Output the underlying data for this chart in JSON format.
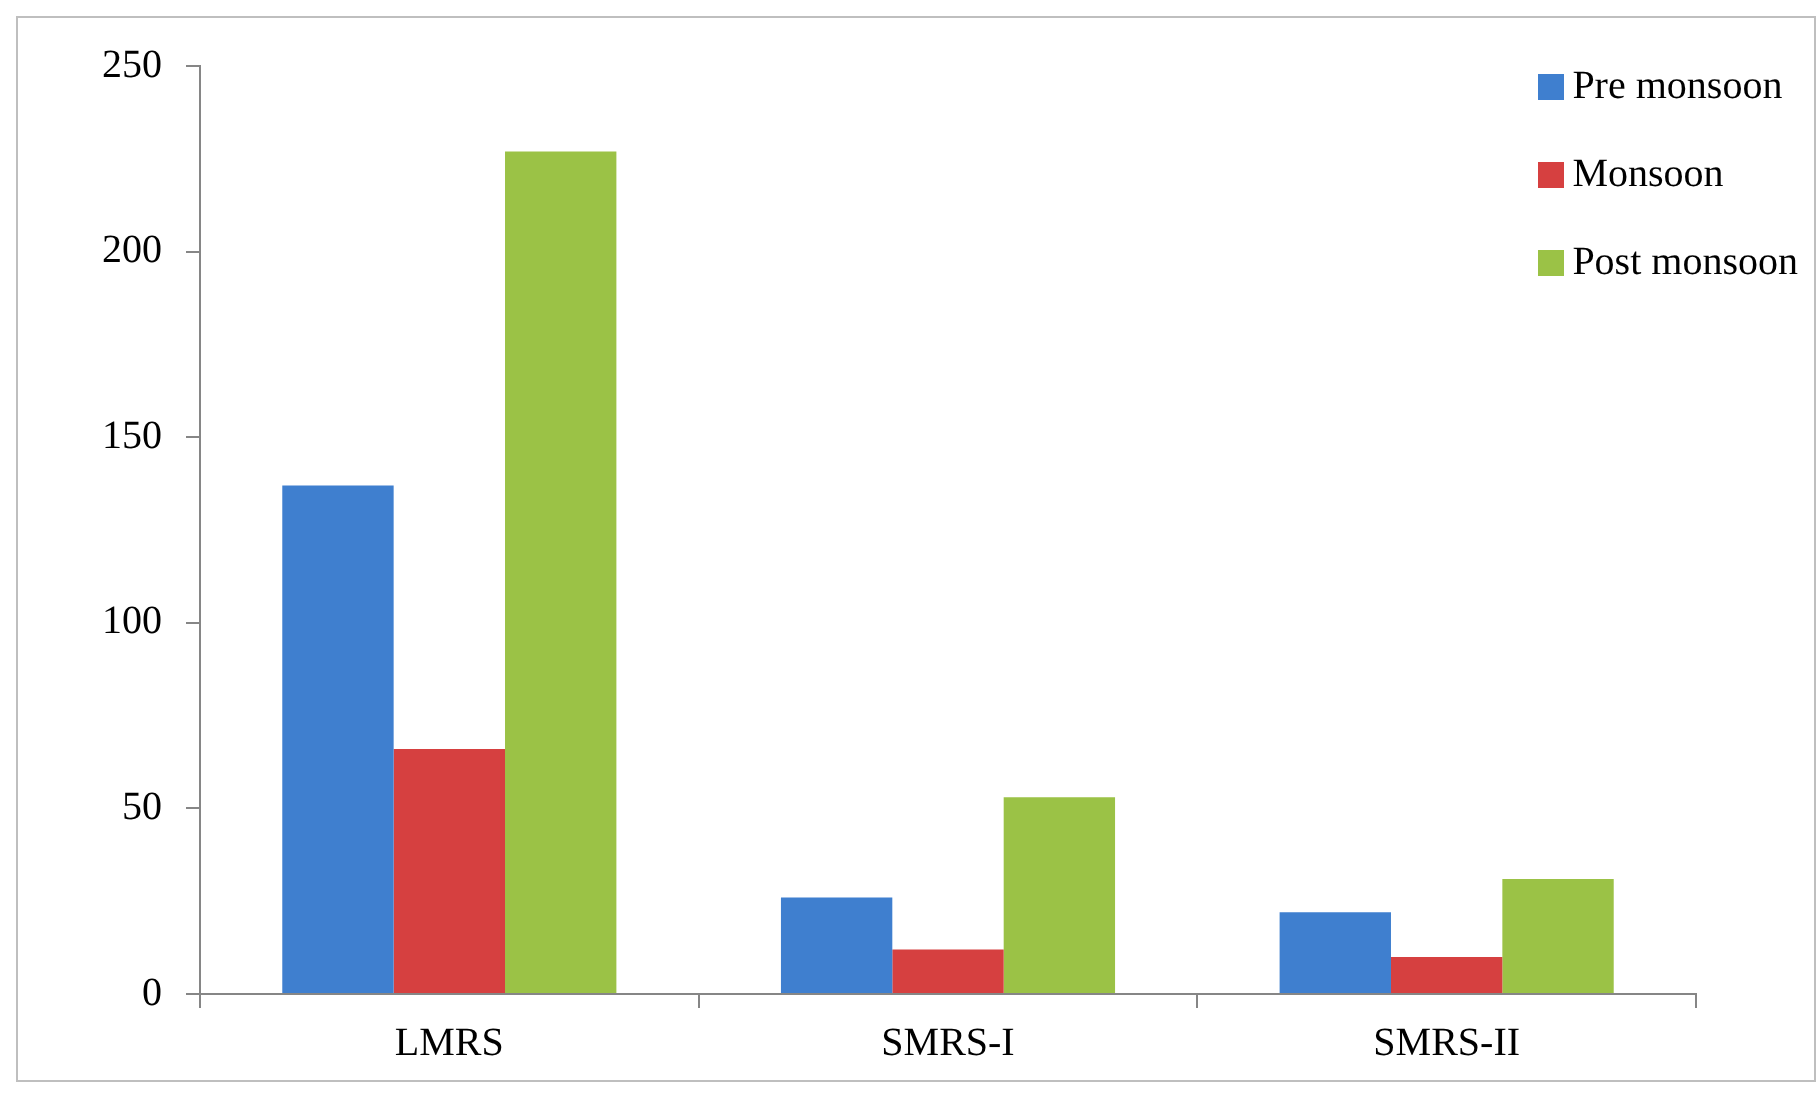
{
  "chart_data": {
    "type": "bar",
    "categories": [
      "LMRS",
      "SMRS-I",
      "SMRS-II"
    ],
    "series": [
      {
        "name": "Pre monsoon",
        "color": "#3f7fcf",
        "values": [
          137,
          26,
          22
        ]
      },
      {
        "name": "Monsoon",
        "color": "#d64040",
        "values": [
          66,
          12,
          10
        ]
      },
      {
        "name": "Post monsoon",
        "color": "#9bc246",
        "values": [
          227,
          53,
          31
        ]
      }
    ],
    "ylim": [
      0,
      250
    ],
    "yticks": [
      0,
      50,
      100,
      150,
      200,
      250
    ],
    "grid": false,
    "legend": "top right"
  }
}
